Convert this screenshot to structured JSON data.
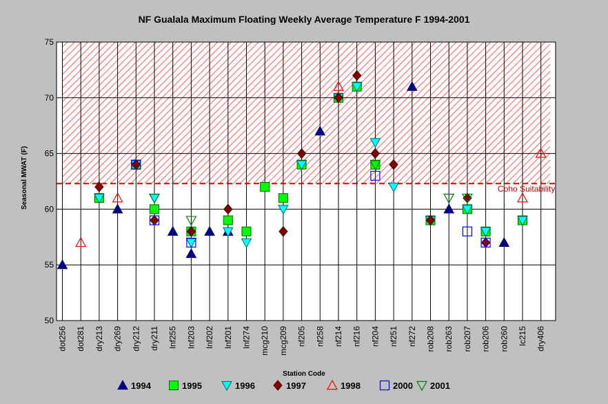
{
  "chart_data": {
    "type": "scatter",
    "title": "NF Gualala Maximum Floating Weekly Average Temperature F 1994-2001",
    "xlabel": "Station Code",
    "ylabel": "Seasonal MWAT (F)",
    "ylim": [
      50,
      75
    ],
    "yticks": [
      "50",
      "55",
      "60",
      "65",
      "70",
      "75"
    ],
    "categories": [
      "dot256",
      "dot281",
      "dry213",
      "dry269",
      "dry212",
      "dry211",
      "lnf255",
      "lnf203",
      "lnf202",
      "lnf201",
      "lnf274",
      "mcg210",
      "mcg209",
      "nf205",
      "nf258",
      "nf214",
      "nf216",
      "nf204",
      "nf251",
      "nf272",
      "rob208",
      "rob263",
      "rob207",
      "rob206",
      "rob260",
      "lc215",
      "dry406"
    ],
    "threshold": {
      "value": 62.3,
      "label": "Coho Suitability",
      "shaded_above": true
    },
    "grid": true,
    "legend_position": "bottom",
    "series": [
      {
        "name": "1994",
        "marker": "triangle-up",
        "fill": "#000080",
        "stroke": "#000080",
        "points": [
          [
            "dot256",
            55
          ],
          [
            "dry269",
            60
          ],
          [
            "lnf255",
            58
          ],
          [
            "lnf203",
            56
          ],
          [
            "lnf202",
            58
          ],
          [
            "lnf201",
            58
          ],
          [
            "nf258",
            67
          ],
          [
            "nf272",
            71
          ],
          [
            "rob263",
            60
          ],
          [
            "rob260",
            57
          ]
        ]
      },
      {
        "name": "1995",
        "marker": "square",
        "fill": "#00ff00",
        "stroke": "#006600",
        "points": [
          [
            "dry213",
            61
          ],
          [
            "dry212",
            64
          ],
          [
            "dry211",
            60
          ],
          [
            "lnf203",
            58
          ],
          [
            "lnf201",
            59
          ],
          [
            "lnf274",
            58
          ],
          [
            "mcg210",
            62
          ],
          [
            "mcg209",
            61
          ],
          [
            "nf205",
            64
          ],
          [
            "nf214",
            70
          ],
          [
            "nf216",
            71
          ],
          [
            "nf204",
            64
          ],
          [
            "rob208",
            59
          ],
          [
            "rob207",
            60
          ],
          [
            "rob206",
            58
          ],
          [
            "lc215",
            59
          ]
        ]
      },
      {
        "name": "1996",
        "marker": "triangle-down",
        "fill": "#00ffff",
        "stroke": "#006666",
        "points": [
          [
            "dry213",
            61
          ],
          [
            "dry212",
            64
          ],
          [
            "dry211",
            61
          ],
          [
            "lnf203",
            57
          ],
          [
            "lnf201",
            58
          ],
          [
            "lnf274",
            57
          ],
          [
            "mcg209",
            60
          ],
          [
            "nf205",
            64
          ],
          [
            "nf214",
            70
          ],
          [
            "nf216",
            71
          ],
          [
            "nf204",
            66
          ],
          [
            "nf251",
            62
          ],
          [
            "rob208",
            59
          ],
          [
            "rob207",
            60
          ],
          [
            "rob206",
            58
          ],
          [
            "lc215",
            59
          ]
        ]
      },
      {
        "name": "1997",
        "marker": "diamond",
        "fill": "#800000",
        "stroke": "#400000",
        "points": [
          [
            "dry213",
            62
          ],
          [
            "dry212",
            64
          ],
          [
            "dry211",
            59
          ],
          [
            "lnf203",
            58
          ],
          [
            "lnf201",
            60
          ],
          [
            "mcg209",
            58
          ],
          [
            "nf205",
            65
          ],
          [
            "nf214",
            70
          ],
          [
            "nf216",
            72
          ],
          [
            "nf204",
            65
          ],
          [
            "nf251",
            64
          ],
          [
            "rob208",
            59
          ],
          [
            "rob207",
            61
          ],
          [
            "rob206",
            57
          ]
        ]
      },
      {
        "name": "1998",
        "marker": "triangle-up-open",
        "fill": "none",
        "stroke": "#ff0000",
        "points": [
          [
            "dot281",
            57
          ],
          [
            "dry269",
            61
          ],
          [
            "nf214",
            71
          ],
          [
            "lc215",
            61
          ],
          [
            "dry406",
            65
          ]
        ]
      },
      {
        "name": "2000",
        "marker": "square-open",
        "fill": "none",
        "stroke": "#0000ff",
        "points": [
          [
            "dry212",
            64
          ],
          [
            "dry211",
            59
          ],
          [
            "lnf203",
            57
          ],
          [
            "nf204",
            63
          ],
          [
            "rob207",
            58
          ],
          [
            "rob206",
            57
          ]
        ]
      },
      {
        "name": "2001",
        "marker": "triangle-down-open",
        "fill": "none",
        "stroke": "#008000",
        "points": [
          [
            "dry211",
            61
          ],
          [
            "lnf203",
            59
          ],
          [
            "nf204",
            64
          ],
          [
            "rob263",
            61
          ],
          [
            "rob207",
            61
          ]
        ]
      }
    ]
  }
}
